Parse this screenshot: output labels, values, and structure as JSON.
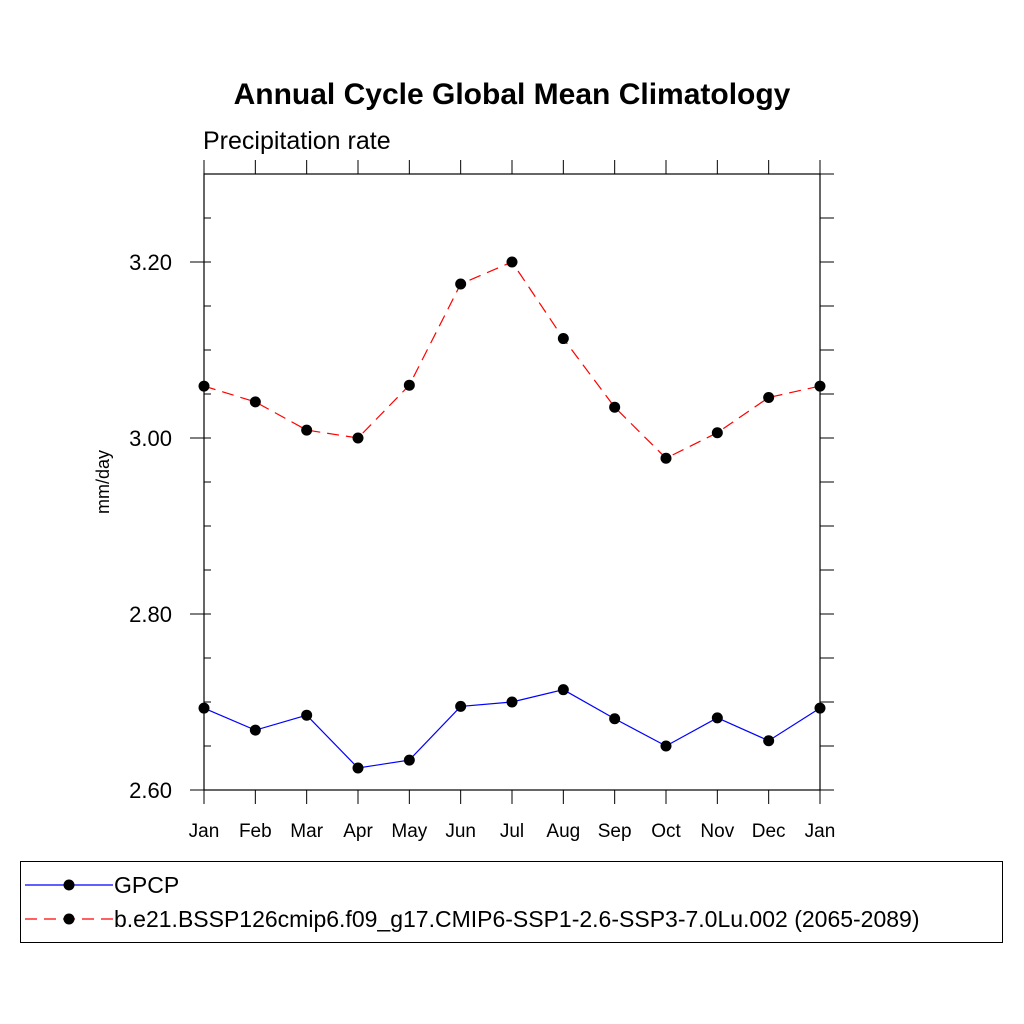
{
  "chart_data": {
    "type": "line",
    "title": "Annual Cycle Global Mean Climatology",
    "subtitle": "Precipitation rate",
    "ylabel": "mm/day",
    "xlabel": "",
    "categories": [
      "Jan",
      "Feb",
      "Mar",
      "Apr",
      "May",
      "Jun",
      "Jul",
      "Aug",
      "Sep",
      "Oct",
      "Nov",
      "Dec",
      "Jan"
    ],
    "ylim": [
      2.6,
      3.3
    ],
    "yticks": [
      2.6,
      2.8,
      3.0,
      3.2
    ],
    "ytick_labels": [
      "2.60",
      "2.80",
      "3.00",
      "3.20"
    ],
    "grid": false,
    "legend_position": "bottom",
    "series": [
      {
        "name": "GPCP",
        "color": "#0000ff",
        "dash": "solid",
        "values": [
          2.693,
          2.668,
          2.685,
          2.625,
          2.634,
          2.695,
          2.7,
          2.714,
          2.681,
          2.65,
          2.682,
          2.656,
          2.693
        ]
      },
      {
        "name": "b.e21.BSSP126cmip6.f09_g17.CMIP6-SSP1-2.6-SSP3-7.0Lu.002 (2065-2089)",
        "color": "#ff0000",
        "dash": "dashed",
        "values": [
          3.059,
          3.041,
          3.009,
          3.0,
          3.06,
          3.175,
          3.2,
          3.113,
          3.035,
          2.977,
          3.006,
          3.046,
          3.059
        ]
      }
    ]
  }
}
